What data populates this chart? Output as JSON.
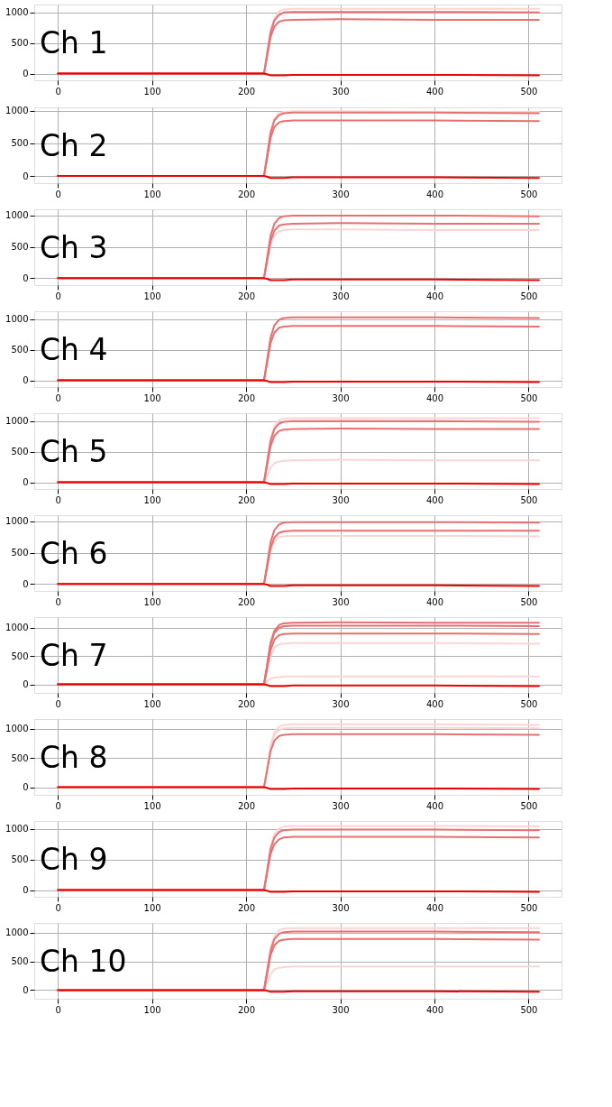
{
  "chart_data": [
    {
      "type": "line",
      "title": "Ch 1",
      "x": [
        0,
        100,
        200,
        219,
        222,
        226,
        230,
        235,
        240,
        250,
        300,
        400,
        511
      ],
      "xlim": [
        -25,
        535
      ],
      "xticks": [
        0,
        100,
        200,
        300,
        400,
        500
      ],
      "ylim": [
        -110,
        1130
      ],
      "yticks": [
        0,
        500,
        1000
      ],
      "grid": true,
      "marker": "none",
      "line_style": "solid",
      "series": [
        {
          "color": "#fbd5d5",
          "values": [
            0,
            0,
            0,
            0,
            300,
            700,
            900,
            1020,
            1050,
            1060,
            1060,
            1060,
            1060
          ]
        },
        {
          "color": "#e87070",
          "values": [
            0,
            0,
            0,
            0,
            290,
            680,
            870,
            960,
            1000,
            1010,
            1010,
            1010,
            1000
          ]
        },
        {
          "color": "#e87070",
          "values": [
            0,
            0,
            0,
            0,
            250,
            600,
            770,
            850,
            870,
            880,
            890,
            880,
            880
          ]
        },
        {
          "color": "#ee0000",
          "values": [
            0,
            0,
            0,
            0,
            -10,
            -30,
            -30,
            -30,
            -30,
            -20,
            -20,
            -20,
            -30
          ]
        }
      ]
    },
    {
      "type": "line",
      "title": "Ch 2",
      "x": [
        0,
        100,
        200,
        219,
        222,
        226,
        230,
        235,
        240,
        250,
        300,
        400,
        511
      ],
      "xlim": [
        -25,
        535
      ],
      "xticks": [
        0,
        100,
        200,
        300,
        400,
        500
      ],
      "ylim": [
        -110,
        1050
      ],
      "yticks": [
        0,
        500,
        1000
      ],
      "grid": true,
      "marker": "none",
      "line_style": "solid",
      "series": [
        {
          "color": "#fbd5d5",
          "values": [
            0,
            0,
            0,
            0,
            300,
            690,
            880,
            960,
            980,
            990,
            990,
            980,
            980
          ]
        },
        {
          "color": "#e87070",
          "values": [
            0,
            0,
            0,
            0,
            280,
            660,
            850,
            930,
            960,
            970,
            970,
            970,
            960
          ]
        },
        {
          "color": "#e87070",
          "values": [
            0,
            0,
            0,
            0,
            240,
            580,
            750,
            820,
            840,
            850,
            850,
            850,
            840
          ]
        },
        {
          "color": "#ee0000",
          "values": [
            0,
            0,
            0,
            0,
            -10,
            -30,
            -30,
            -30,
            -30,
            -20,
            -20,
            -20,
            -30
          ]
        }
      ]
    },
    {
      "type": "line",
      "title": "Ch 3",
      "x": [
        0,
        100,
        200,
        219,
        222,
        226,
        230,
        235,
        240,
        250,
        300,
        400,
        511
      ],
      "xlim": [
        -25,
        535
      ],
      "xticks": [
        0,
        100,
        200,
        300,
        400,
        500
      ],
      "ylim": [
        -110,
        1100
      ],
      "yticks": [
        0,
        500,
        1000
      ],
      "grid": true,
      "marker": "none",
      "line_style": "solid",
      "series": [
        {
          "color": "#fbd5d5",
          "values": [
            0,
            0,
            0,
            0,
            220,
            530,
            680,
            750,
            770,
            780,
            780,
            770,
            770
          ]
        },
        {
          "color": "#e87070",
          "values": [
            0,
            0,
            0,
            0,
            290,
            680,
            870,
            960,
            990,
            1000,
            1000,
            1000,
            990
          ]
        },
        {
          "color": "#e87070",
          "values": [
            0,
            0,
            0,
            0,
            250,
            590,
            760,
            840,
            860,
            870,
            880,
            870,
            870
          ]
        },
        {
          "color": "#ee0000",
          "values": [
            0,
            0,
            0,
            0,
            -10,
            -30,
            -30,
            -30,
            -30,
            -20,
            -20,
            -20,
            -30
          ]
        }
      ]
    },
    {
      "type": "line",
      "title": "Ch 4",
      "x": [
        0,
        100,
        200,
        219,
        222,
        226,
        230,
        235,
        240,
        250,
        300,
        400,
        511
      ],
      "xlim": [
        -25,
        535
      ],
      "xticks": [
        0,
        100,
        200,
        300,
        400,
        500
      ],
      "ylim": [
        -110,
        1130
      ],
      "yticks": [
        0,
        500,
        1000
      ],
      "grid": true,
      "marker": "none",
      "line_style": "solid",
      "series": [
        {
          "color": "#e87070",
          "values": [
            0,
            0,
            0,
            0,
            300,
            700,
            900,
            990,
            1020,
            1030,
            1030,
            1030,
            1020
          ]
        },
        {
          "color": "#e87070",
          "values": [
            0,
            0,
            0,
            0,
            250,
            610,
            780,
            860,
            880,
            890,
            890,
            890,
            880
          ]
        },
        {
          "color": "#ee0000",
          "values": [
            0,
            0,
            0,
            0,
            -10,
            -30,
            -30,
            -30,
            -30,
            -20,
            -20,
            -20,
            -30
          ]
        }
      ]
    },
    {
      "type": "line",
      "title": "Ch 5",
      "x": [
        0,
        100,
        200,
        219,
        222,
        226,
        230,
        235,
        240,
        250,
        300,
        400,
        511
      ],
      "xlim": [
        -25,
        535
      ],
      "xticks": [
        0,
        100,
        200,
        300,
        400,
        500
      ],
      "ylim": [
        -110,
        1130
      ],
      "yticks": [
        0,
        500,
        1000
      ],
      "grid": true,
      "marker": "none",
      "line_style": "solid",
      "series": [
        {
          "color": "#fbd5d5",
          "values": [
            0,
            0,
            0,
            0,
            300,
            710,
            910,
            1020,
            1040,
            1050,
            1050,
            1050,
            1050
          ]
        },
        {
          "color": "#fbd5d5",
          "values": [
            0,
            0,
            0,
            0,
            100,
            240,
            310,
            340,
            350,
            360,
            370,
            360,
            360
          ]
        },
        {
          "color": "#e87070",
          "values": [
            0,
            0,
            0,
            0,
            290,
            680,
            870,
            960,
            990,
            1000,
            1000,
            1000,
            990
          ]
        },
        {
          "color": "#e87070",
          "values": [
            0,
            0,
            0,
            0,
            250,
            590,
            760,
            840,
            860,
            870,
            880,
            870,
            870
          ]
        },
        {
          "color": "#ee0000",
          "values": [
            0,
            0,
            0,
            0,
            -10,
            -30,
            -30,
            -30,
            -30,
            -20,
            -20,
            -20,
            -30
          ]
        }
      ]
    },
    {
      "type": "line",
      "title": "Ch 6",
      "x": [
        0,
        100,
        200,
        219,
        222,
        226,
        230,
        235,
        240,
        250,
        300,
        400,
        511
      ],
      "xlim": [
        -25,
        535
      ],
      "xticks": [
        0,
        100,
        200,
        300,
        400,
        500
      ],
      "ylim": [
        -110,
        1100
      ],
      "yticks": [
        0,
        500,
        1000
      ],
      "grid": true,
      "marker": "none",
      "line_style": "solid",
      "series": [
        {
          "color": "#fbd5d5",
          "values": [
            0,
            0,
            0,
            0,
            220,
            530,
            680,
            750,
            760,
            770,
            770,
            770,
            760
          ]
        },
        {
          "color": "#e87070",
          "values": [
            0,
            0,
            0,
            0,
            280,
            670,
            860,
            950,
            980,
            990,
            990,
            990,
            980
          ]
        },
        {
          "color": "#e87070",
          "values": [
            0,
            0,
            0,
            0,
            240,
            580,
            740,
            820,
            840,
            850,
            850,
            850,
            850
          ]
        },
        {
          "color": "#ee0000",
          "values": [
            0,
            0,
            0,
            0,
            -10,
            -30,
            -30,
            -30,
            -30,
            -20,
            -20,
            -20,
            -30
          ]
        }
      ]
    },
    {
      "type": "line",
      "title": "Ch 7",
      "x": [
        0,
        100,
        200,
        219,
        222,
        226,
        230,
        235,
        240,
        250,
        300,
        400,
        511
      ],
      "xlim": [
        -25,
        535
      ],
      "xticks": [
        0,
        100,
        200,
        300,
        400,
        500
      ],
      "ylim": [
        -150,
        1190
      ],
      "yticks": [
        0,
        500,
        1000
      ],
      "grid": true,
      "marker": "none",
      "line_style": "solid",
      "series": [
        {
          "color": "#fbd5d5",
          "values": [
            0,
            0,
            0,
            0,
            210,
            500,
            650,
            710,
            720,
            730,
            730,
            730,
            720
          ]
        },
        {
          "color": "#fbd5d5",
          "values": [
            0,
            0,
            0,
            0,
            50,
            100,
            120,
            130,
            140,
            140,
            140,
            140,
            140
          ]
        },
        {
          "color": "#e87070",
          "values": [
            0,
            0,
            0,
            0,
            310,
            740,
            950,
            1050,
            1080,
            1090,
            1100,
            1090,
            1090
          ]
        },
        {
          "color": "#e87070",
          "values": [
            0,
            0,
            0,
            0,
            300,
            710,
            910,
            1000,
            1030,
            1040,
            1040,
            1040,
            1030
          ]
        },
        {
          "color": "#e87070",
          "values": [
            0,
            0,
            0,
            0,
            260,
            610,
            790,
            870,
            890,
            900,
            900,
            900,
            890
          ]
        },
        {
          "color": "#ee0000",
          "values": [
            0,
            0,
            0,
            0,
            -10,
            -30,
            -30,
            -30,
            -30,
            -20,
            -20,
            -20,
            -30
          ]
        }
      ]
    },
    {
      "type": "line",
      "title": "Ch 8",
      "x": [
        0,
        100,
        200,
        219,
        222,
        226,
        230,
        235,
        240,
        250,
        300,
        400,
        511
      ],
      "xlim": [
        -25,
        535
      ],
      "xticks": [
        0,
        100,
        200,
        300,
        400,
        500
      ],
      "ylim": [
        -130,
        1170
      ],
      "yticks": [
        0,
        500,
        1000
      ],
      "grid": true,
      "marker": "none",
      "line_style": "solid",
      "series": [
        {
          "color": "#fbd5d5",
          "values": [
            0,
            0,
            0,
            0,
            310,
            730,
            940,
            1040,
            1070,
            1080,
            1080,
            1080,
            1070
          ]
        },
        {
          "color": "#fbd5d5",
          "values": [
            0,
            0,
            0,
            0,
            290,
            690,
            890,
            980,
            1010,
            1020,
            1020,
            1020,
            1010
          ]
        },
        {
          "color": "#e87070",
          "values": [
            0,
            0,
            0,
            0,
            260,
            620,
            800,
            880,
            900,
            910,
            910,
            910,
            900
          ]
        },
        {
          "color": "#ee0000",
          "values": [
            0,
            0,
            0,
            0,
            -10,
            -30,
            -30,
            -30,
            -30,
            -20,
            -20,
            -20,
            -30
          ]
        }
      ]
    },
    {
      "type": "line",
      "title": "Ch 9",
      "x": [
        0,
        100,
        200,
        219,
        222,
        226,
        230,
        235,
        240,
        250,
        300,
        400,
        511
      ],
      "xlim": [
        -25,
        535
      ],
      "xticks": [
        0,
        100,
        200,
        300,
        400,
        500
      ],
      "ylim": [
        -110,
        1130
      ],
      "yticks": [
        0,
        500,
        1000
      ],
      "grid": true,
      "marker": "none",
      "line_style": "solid",
      "series": [
        {
          "color": "#fbd5d5",
          "values": [
            0,
            0,
            0,
            0,
            300,
            710,
            910,
            1010,
            1040,
            1050,
            1050,
            1050,
            1040
          ]
        },
        {
          "color": "#e87070",
          "values": [
            0,
            0,
            0,
            0,
            280,
            670,
            860,
            950,
            980,
            990,
            990,
            990,
            980
          ]
        },
        {
          "color": "#e87070",
          "values": [
            0,
            0,
            0,
            0,
            250,
            590,
            750,
            830,
            860,
            870,
            870,
            870,
            860
          ]
        },
        {
          "color": "#ee0000",
          "values": [
            0,
            0,
            0,
            0,
            -10,
            -30,
            -30,
            -30,
            -30,
            -20,
            -20,
            -20,
            -30
          ]
        }
      ]
    },
    {
      "type": "line",
      "title": "Ch 10",
      "x": [
        0,
        100,
        200,
        219,
        222,
        226,
        230,
        235,
        240,
        250,
        300,
        400,
        511
      ],
      "xlim": [
        -25,
        535
      ],
      "xticks": [
        0,
        100,
        200,
        300,
        400,
        500
      ],
      "ylim": [
        -150,
        1170
      ],
      "yticks": [
        0,
        500,
        1000
      ],
      "grid": true,
      "marker": "none",
      "line_style": "solid",
      "series": [
        {
          "color": "#fbd5d5",
          "values": [
            0,
            0,
            0,
            0,
            310,
            730,
            940,
            1040,
            1070,
            1080,
            1080,
            1080,
            1080
          ]
        },
        {
          "color": "#fbd5d5",
          "values": [
            0,
            0,
            0,
            0,
            120,
            280,
            360,
            390,
            400,
            410,
            410,
            410,
            410
          ]
        },
        {
          "color": "#e87070",
          "values": [
            0,
            0,
            0,
            0,
            290,
            690,
            890,
            980,
            1010,
            1020,
            1020,
            1020,
            1010
          ]
        },
        {
          "color": "#e87070",
          "values": [
            0,
            0,
            0,
            0,
            250,
            610,
            780,
            860,
            880,
            890,
            890,
            890,
            880
          ]
        },
        {
          "color": "#ee0000",
          "values": [
            0,
            0,
            0,
            0,
            -10,
            -30,
            -30,
            -30,
            -30,
            -20,
            -20,
            -20,
            -30
          ]
        }
      ]
    }
  ]
}
